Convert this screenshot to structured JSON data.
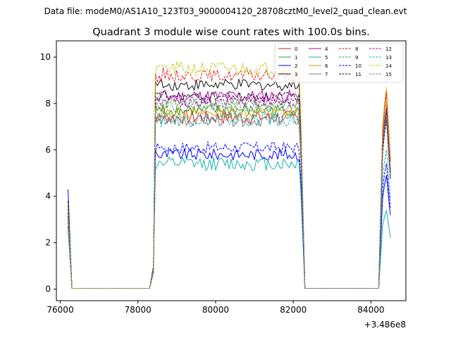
{
  "figure": {
    "suptitle": "Data file: modeM0/AS1A10_123T03_9000004120_28708cztM0_level2_quad_clean.evt",
    "title": "Quadrant 3 module wise count rates with 100.0s bins."
  },
  "chart_data": {
    "type": "line",
    "title": "Quadrant 3 module wise count rates with 100.0s bins.",
    "xlabel": "",
    "ylabel": "",
    "x_offset_label": "+3.486e8",
    "xlim": [
      75900,
      84900
    ],
    "ylim": [
      -0.5,
      10.7
    ],
    "x_ticks": [
      76000,
      78000,
      80000,
      82000,
      84000
    ],
    "y_ticks": [
      0,
      2,
      4,
      6,
      8,
      10
    ],
    "x_tick_labels": [
      "76000",
      "78000",
      "80000",
      "82000",
      "84000"
    ],
    "y_tick_labels": [
      "0",
      "2",
      "4",
      "6",
      "8",
      "10"
    ],
    "grid": false,
    "legend_position": "top-right",
    "segments": [
      {
        "start": 76200,
        "end": 78300,
        "step": 100
      },
      {
        "start": 78400,
        "end": 82200,
        "step": 50
      },
      {
        "start": 82300,
        "end": 84200,
        "step": 100
      },
      {
        "start": 84300,
        "end": 84500,
        "step": 50
      }
    ],
    "series": [
      {
        "name": "0",
        "color": "#e31a1c",
        "dash": "solid",
        "start": 3.4,
        "peak": 8.6,
        "plateau": 7.4,
        "amp": 0.3
      },
      {
        "name": "1",
        "color": "#2ca02c",
        "dash": "solid",
        "start": 3.1,
        "peak": 7.6,
        "plateau": 7.7,
        "amp": 0.25
      },
      {
        "name": "2",
        "color": "#0000ff",
        "dash": "solid",
        "start": 4.3,
        "peak": 4.9,
        "plateau": 5.8,
        "amp": 0.25
      },
      {
        "name": "3",
        "color": "#111111",
        "dash": "solid",
        "start": 3.8,
        "peak": 7.7,
        "plateau": 8.8,
        "amp": 0.25
      },
      {
        "name": "4",
        "color": "#b000b0",
        "dash": "solid",
        "start": 3.2,
        "peak": 7.9,
        "plateau": 8.3,
        "amp": 0.3
      },
      {
        "name": "5",
        "color": "#17b3b3",
        "dash": "solid",
        "start": 2.9,
        "peak": 3.4,
        "plateau": 5.4,
        "amp": 0.3
      },
      {
        "name": "6",
        "color": "#c8a000",
        "dash": "solid",
        "start": 3.5,
        "peak": 8.0,
        "plateau": 7.6,
        "amp": 0.25
      },
      {
        "name": "7",
        "color": "#808080",
        "dash": "solid",
        "start": 3.0,
        "peak": 7.4,
        "plateau": 7.3,
        "amp": 0.3
      },
      {
        "name": "8",
        "color": "#e31a1c",
        "dash": "dashed",
        "start": 3.3,
        "peak": 8.4,
        "plateau": 9.2,
        "amp": 0.25
      },
      {
        "name": "9",
        "color": "#2ca02c",
        "dash": "dashed",
        "start": 3.0,
        "peak": 7.8,
        "plateau": 8.0,
        "amp": 0.25
      },
      {
        "name": "10",
        "color": "#0000ff",
        "dash": "dashed",
        "start": 2.7,
        "peak": 5.4,
        "plateau": 6.1,
        "amp": 0.25
      },
      {
        "name": "11",
        "color": "#111111",
        "dash": "dashed",
        "start": 3.6,
        "peak": 7.3,
        "plateau": 8.3,
        "amp": 0.2
      },
      {
        "name": "12",
        "color": "#b000b0",
        "dash": "dashed",
        "start": 3.1,
        "peak": 7.8,
        "plateau": 8.1,
        "amp": 0.25
      },
      {
        "name": "13",
        "color": "#17b3b3",
        "dash": "dashed",
        "start": 2.6,
        "peak": 6.0,
        "plateau": 7.3,
        "amp": 0.3
      },
      {
        "name": "14",
        "color": "#c8c000",
        "dash": "dashed",
        "start": 3.7,
        "peak": 8.7,
        "plateau": 9.5,
        "amp": 0.3
      },
      {
        "name": "15",
        "color": "#808080",
        "dash": "dashed",
        "start": 3.0,
        "peak": 7.5,
        "plateau": 7.9,
        "amp": 0.25
      }
    ]
  }
}
